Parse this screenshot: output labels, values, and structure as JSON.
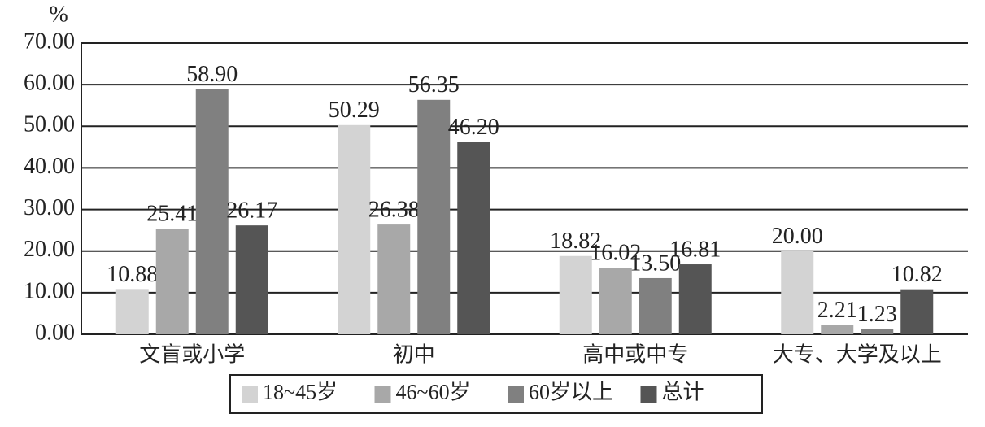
{
  "chart_data": {
    "type": "bar",
    "y_label": "%",
    "categories": [
      "文盲或小学",
      "初中",
      "高中或中专",
      "大专、大学及以上"
    ],
    "series": [
      {
        "name": "18~45岁",
        "color": "#d3d3d3",
        "values": [
          10.88,
          50.29,
          18.82,
          20.0
        ],
        "value_labels": [
          "10.88",
          "50.29",
          "18.82",
          "20.00"
        ]
      },
      {
        "name": "46~60岁",
        "color": "#a8a8a8",
        "values": [
          25.41,
          26.38,
          16.02,
          2.21
        ],
        "value_labels": [
          "25.41",
          "26.38",
          "16.02",
          "2.21"
        ]
      },
      {
        "name": "60岁以上",
        "color": "#808080",
        "values": [
          58.9,
          56.35,
          13.5,
          1.23
        ],
        "value_labels": [
          "58.90",
          "56.35",
          "13.50",
          "1.23"
        ]
      },
      {
        "name": "总计",
        "color": "#555555",
        "values": [
          26.17,
          46.2,
          16.81,
          10.82
        ],
        "value_labels": [
          "26.17",
          "46.20",
          "16.81",
          "10.82"
        ]
      }
    ],
    "ylim": [
      0,
      70
    ],
    "yticks": [
      {
        "value": 0,
        "label": "0.00"
      },
      {
        "value": 10,
        "label": "10.00"
      },
      {
        "value": 20,
        "label": "20.00"
      },
      {
        "value": 30,
        "label": "30.00"
      },
      {
        "value": 40,
        "label": "40.00"
      },
      {
        "value": 50,
        "label": "50.00"
      },
      {
        "value": 60,
        "label": "60.00"
      },
      {
        "value": 70,
        "label": "70.00"
      }
    ],
    "grid": true,
    "legend": "bottom"
  }
}
